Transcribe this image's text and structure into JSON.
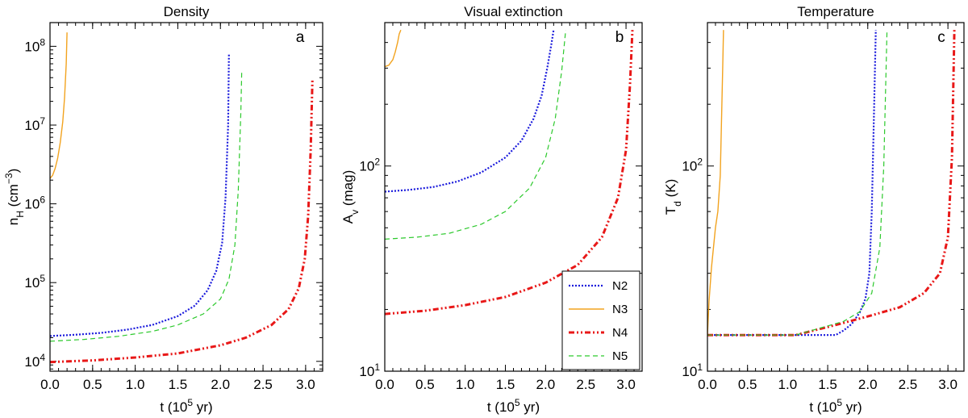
{
  "chart_data": [
    {
      "type": "line",
      "id": "a",
      "title": "Density",
      "panel_letter": "a",
      "xlabel": "t (10",
      "xlabel_sup": "5",
      "xlabel_end": "  yr)",
      "ylabel": "n",
      "ylabel_sub": "H",
      "ylabel_mid": " (cm",
      "ylabel_sup": "−3",
      "ylabel_end": ")",
      "yscale": "log",
      "xlim": [
        0,
        3.2
      ],
      "ylim": [
        7500,
        200000000
      ],
      "xticks": [
        "0.0",
        "0.5",
        "1.0",
        "1.5",
        "2.0",
        "2.5",
        "3.0"
      ],
      "yticks": [
        {
          "value": 10000,
          "base": "10",
          "exp": "4"
        },
        {
          "value": 100000,
          "base": "10",
          "exp": "5"
        },
        {
          "value": 1000000,
          "base": "10",
          "exp": "6"
        },
        {
          "value": 10000000,
          "base": "10",
          "exp": "7"
        },
        {
          "value": 100000000,
          "base": "10",
          "exp": "8"
        }
      ],
      "series": [
        {
          "name": "N2",
          "x": [
            0,
            0.3,
            0.6,
            0.9,
            1.2,
            1.5,
            1.7,
            1.85,
            1.95,
            2.02,
            2.06,
            2.09,
            2.1
          ],
          "y": [
            21000,
            21800,
            23000,
            25200,
            29000,
            37500,
            51000,
            80000,
            140000,
            320000,
            1200000,
            10000000,
            80000000
          ]
        },
        {
          "name": "N3",
          "x": [
            0,
            0.03,
            0.06,
            0.09,
            0.12,
            0.15,
            0.17,
            0.19,
            0.2
          ],
          "y": [
            2100000,
            2300000,
            2800000,
            3800000,
            6000000,
            11000000,
            22000000,
            60000000,
            150000000
          ]
        },
        {
          "name": "N4",
          "x": [
            0,
            0.5,
            1.0,
            1.5,
            2.0,
            2.3,
            2.6,
            2.8,
            2.92,
            2.99,
            3.03,
            3.06,
            3.08
          ],
          "y": [
            9800,
            10300,
            11200,
            12600,
            16000,
            20000,
            29000,
            46000,
            85000,
            200000,
            700000,
            5000000,
            38000000
          ]
        },
        {
          "name": "N5",
          "x": [
            0,
            0.4,
            0.8,
            1.2,
            1.5,
            1.8,
            2.0,
            2.1,
            2.17,
            2.21,
            2.24,
            2.25
          ],
          "y": [
            18000,
            19000,
            20800,
            24000,
            29000,
            40000,
            62000,
            110000,
            300000,
            1500000,
            15000000,
            50000000
          ]
        }
      ]
    },
    {
      "type": "line",
      "id": "b",
      "title": "Visual extinction",
      "panel_letter": "b",
      "xlabel": "t (10",
      "xlabel_sup": "5",
      "xlabel_end": "  yr)",
      "ylabel": "A",
      "ylabel_sub": "v",
      "ylabel_mid": " (mag)",
      "ylabel_sup": "",
      "ylabel_end": "",
      "yscale": "log",
      "xlim": [
        0,
        3.2
      ],
      "ylim": [
        10,
        500
      ],
      "xticks": [
        "0.0",
        "0.5",
        "1.0",
        "1.5",
        "2.0",
        "2.5",
        "3.0"
      ],
      "yticks": [
        {
          "value": 10,
          "base": "10",
          "exp": "1"
        },
        {
          "value": 100,
          "base": "10",
          "exp": "2"
        }
      ],
      "legend": {
        "position": "lower-right",
        "entries": [
          "N2",
          "N3",
          "N4",
          "N5"
        ]
      },
      "series": [
        {
          "name": "N2",
          "x": [
            0,
            0.3,
            0.6,
            0.9,
            1.2,
            1.5,
            1.7,
            1.85,
            1.95,
            2.02,
            2.07,
            2.1
          ],
          "y": [
            75,
            76.5,
            79,
            84,
            93,
            110,
            133,
            170,
            220,
            300,
            390,
            460
          ]
        },
        {
          "name": "N3",
          "x": [
            0,
            0.05,
            0.1,
            0.13,
            0.16,
            0.18,
            0.2
          ],
          "y": [
            305,
            310,
            330,
            360,
            400,
            440,
            460
          ]
        },
        {
          "name": "N4",
          "x": [
            0,
            0.5,
            1.0,
            1.5,
            2.0,
            2.4,
            2.7,
            2.9,
            3.0,
            3.05,
            3.08
          ],
          "y": [
            19,
            19.7,
            21,
            23,
            27,
            33,
            45,
            70,
            120,
            250,
            460
          ]
        },
        {
          "name": "N5",
          "x": [
            0,
            0.4,
            0.8,
            1.2,
            1.5,
            1.8,
            2.0,
            2.12,
            2.2,
            2.25
          ],
          "y": [
            44,
            45,
            47,
            52,
            60,
            78,
            110,
            170,
            290,
            460
          ]
        }
      ]
    },
    {
      "type": "line",
      "id": "c",
      "title": "Temperature",
      "panel_letter": "c",
      "xlabel": "t (10",
      "xlabel_sup": "5",
      "xlabel_end": "  yr)",
      "ylabel": "T",
      "ylabel_sub": "d",
      "ylabel_mid": " (K)",
      "ylabel_sup": "",
      "ylabel_end": "",
      "yscale": "log",
      "xlim": [
        0,
        3.2
      ],
      "ylim": [
        10,
        500
      ],
      "xticks": [
        "0.0",
        "0.5",
        "1.0",
        "1.5",
        "2.0",
        "2.5",
        "3.0"
      ],
      "yticks": [
        {
          "value": 10,
          "base": "10",
          "exp": "1"
        },
        {
          "value": 100,
          "base": "10",
          "exp": "2"
        }
      ],
      "series": [
        {
          "name": "N2",
          "x": [
            0,
            0.8,
            1.6,
            1.7,
            1.8,
            1.9,
            1.97,
            2.02,
            2.05,
            2.08,
            2.1
          ],
          "y": [
            15,
            15,
            15,
            15.8,
            17,
            19.3,
            22.5,
            30,
            60,
            200,
            460
          ]
        },
        {
          "name": "N3",
          "x": [
            0,
            0.02,
            0.05,
            0.08,
            0.1,
            0.13,
            0.16,
            0.19,
            0.2
          ],
          "y": [
            15,
            22,
            32,
            42,
            50,
            60,
            90,
            300,
            460
          ]
        },
        {
          "name": "N4",
          "x": [
            0,
            0.6,
            1.1,
            1.3,
            1.6,
            2.0,
            2.4,
            2.7,
            2.9,
            3.0,
            3.05,
            3.08
          ],
          "y": [
            15,
            15,
            15,
            15.7,
            16.8,
            18.5,
            20.5,
            24,
            30,
            45,
            110,
            460
          ]
        },
        {
          "name": "N5",
          "x": [
            0,
            0.6,
            1.1,
            1.4,
            1.7,
            1.9,
            2.05,
            2.15,
            2.2,
            2.24
          ],
          "y": [
            15,
            15,
            15,
            16.2,
            17.5,
            19.5,
            24,
            40,
            100,
            460
          ]
        }
      ]
    }
  ],
  "styles": {
    "N2": {
      "color": "#1a1adc",
      "dash": "2,2",
      "width": 2.2
    },
    "N3": {
      "color": "#f2a31f",
      "dash": "",
      "width": 1.4
    },
    "N4": {
      "color": "#e81818",
      "dash": "7,3,2,3,2,3",
      "width": 3
    },
    "N5": {
      "color": "#2cc92c",
      "dash": "6,4",
      "width": 1.2
    }
  }
}
